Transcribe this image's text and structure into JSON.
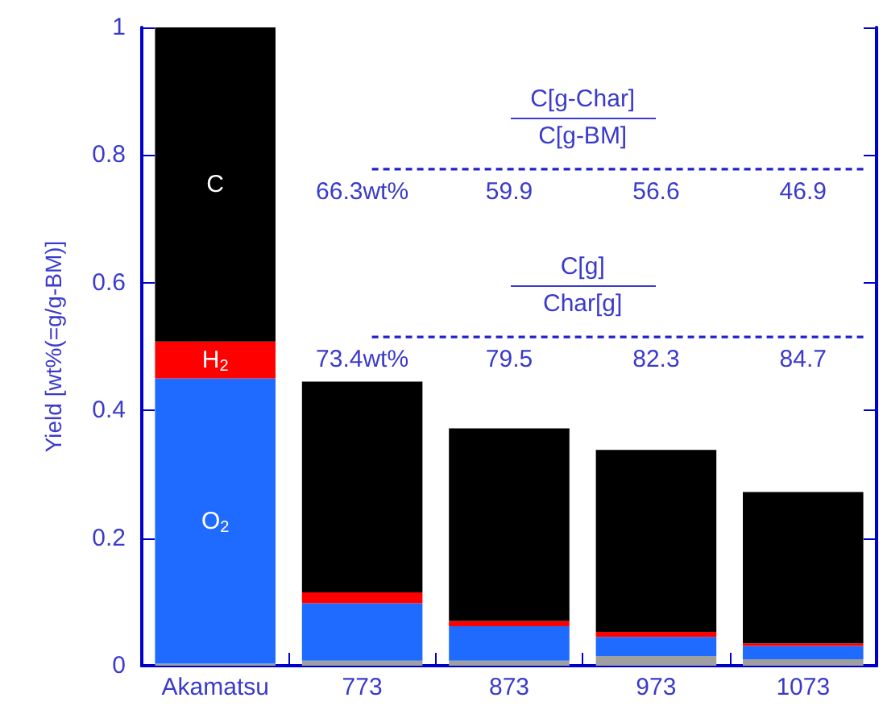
{
  "chart_data": {
    "type": "bar",
    "stacked": true,
    "ylabel": "Yield [wt%(=g/g-BM)]",
    "categories": [
      "Akamatsu",
      "773",
      "873",
      "973",
      "1073"
    ],
    "series": [
      {
        "color": "#a0a0a0",
        "values": [
          0.003,
          0.008,
          0.008,
          0.015,
          0.01
        ]
      },
      {
        "name": "O$_{2}$",
        "color": "#1f6bff",
        "values": [
          0.447,
          0.09,
          0.054,
          0.03,
          0.021
        ]
      },
      {
        "name": "H$_{2}$",
        "color": "#ff0000",
        "values": [
          0.058,
          0.017,
          0.008,
          0.008,
          0.004
        ]
      },
      {
        "name": "C",
        "color": "#000000",
        "values": [
          0.492,
          0.33,
          0.302,
          0.285,
          0.237
        ]
      }
    ],
    "ylim": [
      0,
      1
    ],
    "yticks": [
      0,
      0.2,
      0.4,
      0.6,
      0.8,
      1
    ],
    "grid": false,
    "legend": false,
    "ref_lines": [
      {
        "axis": "y",
        "value": 0.778,
        "color": "#2222cc",
        "line_style": "dashed"
      },
      {
        "axis": "y",
        "value": 0.515,
        "color": "#2222cc",
        "line_style": "dashed"
      }
    ],
    "annotations": [
      "C[g-Char]",
      "C[g-BM]",
      "66.3wt%",
      "59.9",
      "56.6",
      "46.9",
      "C[g]",
      "Char[g]",
      "73.4wt%",
      "79.5",
      "82.3",
      "84.7"
    ]
  }
}
